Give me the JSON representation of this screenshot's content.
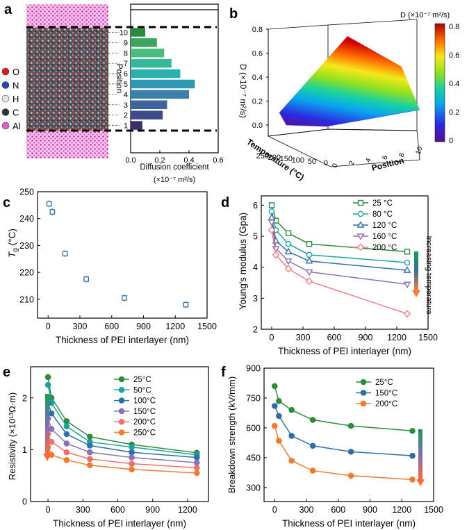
{
  "colors": {
    "green": "#2e8b3e",
    "teal": "#1aa39b",
    "blue": "#2f6fa8",
    "purple": "#8a72b8",
    "salmon": "#ef7f7f",
    "orange": "#f07b2e",
    "ink": "#111111"
  },
  "chart_data": [
    {
      "panel": "a",
      "type": "bar",
      "orientation": "horizontal",
      "ylabel": "Position",
      "xlabel": "Diffusion coefficient",
      "xunit": "(×10⁻⁷ m²/s)",
      "categories": [
        "1",
        "2",
        "3",
        "4",
        "5",
        "6",
        "7",
        "8",
        "9",
        "10"
      ],
      "values": [
        0.08,
        0.22,
        0.25,
        0.4,
        0.44,
        0.34,
        0.28,
        0.23,
        0.18,
        0.1
      ],
      "xlim": [
        0,
        0.6
      ],
      "xticks": [
        "0.0",
        "0.2",
        "0.4",
        "0.6"
      ],
      "bar_colors": [
        "#3b2e6e",
        "#3d4a8c",
        "#3e649e",
        "#3a7fae",
        "#2f98b5",
        "#2ab0ad",
        "#35b99a",
        "#4cbc7e",
        "#3aa55e",
        "#2a8a3c"
      ],
      "legend": [
        {
          "label": "O",
          "color": "#d81e1e"
        },
        {
          "label": "N",
          "color": "#2740b8"
        },
        {
          "label": "H",
          "color": "#e6e6e6"
        },
        {
          "label": "C",
          "color": "#333333"
        },
        {
          "label": "Al",
          "color": "#e05fd0"
        }
      ]
    },
    {
      "panel": "b",
      "type": "surface3d",
      "zlabel": "D (×10⁻⁷ m²/s)",
      "xlabel": "Temperature (°C)",
      "ylabel": "Position",
      "zticks": [
        "0.0",
        "0.2",
        "0.4",
        "0.6",
        "0.8"
      ],
      "xticks": [
        "0",
        "50",
        "100",
        "150",
        "200",
        "250"
      ],
      "yticks": [
        "0",
        "2",
        "4",
        "6",
        "8",
        "10"
      ],
      "colorbar_title": "D (×10⁻⁷ m²/s)",
      "colorbar_ticks": [
        "0.8",
        "0.6",
        "0.4",
        "0.2",
        "0"
      ]
    },
    {
      "panel": "c",
      "type": "scatter",
      "xlabel": "Thickness of PEI interlayer (nm)",
      "ylabel": "Tg (°C)",
      "x": [
        10,
        40,
        160,
        360,
        720,
        1300
      ],
      "y": [
        245.5,
        242.5,
        227,
        217.5,
        210.5,
        208
      ],
      "xlim": [
        -100,
        1500
      ],
      "ylim": [
        203,
        250
      ],
      "xticks": [
        "0",
        "300",
        "600",
        "900",
        "1200",
        "1500"
      ],
      "yticks": [
        "210",
        "220",
        "230",
        "240",
        "250"
      ]
    },
    {
      "panel": "d",
      "type": "line",
      "xlabel": "Thickness of PEI interlayer (nm)",
      "ylabel": "Young's modulus (Gpa)",
      "x": [
        0,
        40,
        160,
        360,
        1300
      ],
      "series": [
        {
          "name": "25 °C",
          "values": [
            6.0,
            5.5,
            5.1,
            4.75,
            4.5
          ]
        },
        {
          "name": "80 °C",
          "values": [
            5.8,
            5.2,
            4.75,
            4.4,
            4.15
          ]
        },
        {
          "name": "120 °C",
          "values": [
            5.6,
            4.85,
            4.5,
            4.2,
            3.9
          ]
        },
        {
          "name": "160 °C",
          "values": [
            5.45,
            4.6,
            4.2,
            3.85,
            3.45
          ]
        },
        {
          "name": "200 °C",
          "values": [
            5.2,
            4.4,
            3.95,
            3.55,
            2.5
          ]
        }
      ],
      "xlim": [
        -100,
        1500
      ],
      "ylim": [
        2,
        6.3
      ],
      "xticks": [
        "0",
        "300",
        "600",
        "900",
        "1200",
        "1500"
      ],
      "yticks": [
        "2",
        "3",
        "4",
        "5",
        "6"
      ],
      "arrow_label": "Increasing temperature"
    },
    {
      "panel": "e",
      "type": "line",
      "xlabel": "Thickness of PEI interlayer (nm)",
      "ylabel": "Resistivity (×10¹³Ω·m)",
      "x": [
        0,
        30,
        160,
        360,
        720,
        1280
      ],
      "series": [
        {
          "name": "25°C",
          "values": [
            2.4,
            2.0,
            1.55,
            1.25,
            1.1,
            0.94
          ]
        },
        {
          "name": "50°C",
          "values": [
            2.25,
            1.9,
            1.45,
            1.15,
            1.05,
            0.9
          ]
        },
        {
          "name": "100°C",
          "values": [
            1.9,
            1.7,
            1.3,
            1.08,
            0.95,
            0.85
          ]
        },
        {
          "name": "150°C",
          "values": [
            1.6,
            1.4,
            1.12,
            0.95,
            0.85,
            0.75
          ]
        },
        {
          "name": "200°C",
          "values": [
            1.3,
            1.15,
            0.95,
            0.82,
            0.73,
            0.65
          ]
        },
        {
          "name": "250°C",
          "values": [
            1.05,
            0.9,
            0.8,
            0.7,
            0.62,
            0.55
          ]
        }
      ],
      "xlim": [
        -150,
        1380
      ],
      "ylim": [
        0,
        2.6
      ],
      "xticks": [
        "0",
        "300",
        "600",
        "900",
        "1200"
      ],
      "yticks": [
        "0",
        "1",
        "2"
      ]
    },
    {
      "panel": "f",
      "type": "line",
      "xlabel": "Thickness of PEI interlayer (nm)",
      "ylabel": "Breakdown strength (kV/mm)",
      "x": [
        0,
        40,
        160,
        360,
        720,
        1300
      ],
      "series": [
        {
          "name": "25°C",
          "values": [
            810,
            735,
            690,
            640,
            610,
            585
          ]
        },
        {
          "name": "150°C",
          "values": [
            710,
            660,
            560,
            510,
            480,
            460
          ]
        },
        {
          "name": "200°C",
          "values": [
            610,
            535,
            435,
            385,
            360,
            340
          ]
        }
      ],
      "xlim": [
        -100,
        1500
      ],
      "ylim": [
        230,
        900
      ],
      "xticks": [
        "0",
        "300",
        "600",
        "900",
        "1200",
        "1500"
      ],
      "yticks": [
        "300",
        "450",
        "600",
        "750",
        "900"
      ]
    }
  ]
}
